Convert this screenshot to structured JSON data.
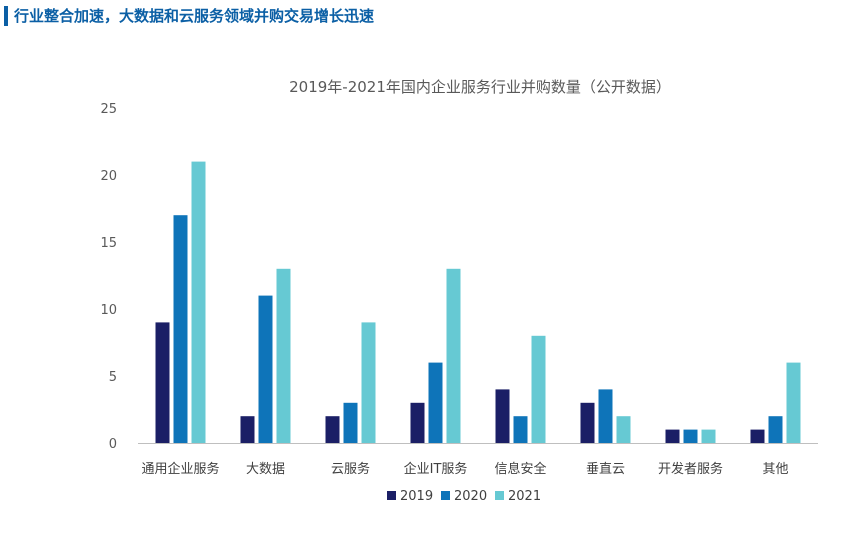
{
  "header": {
    "title": "行业整合加速，大数据和云服务领域并购交易增长迅速"
  },
  "colors": {
    "s2019": "#1b1f66",
    "s2020": "#0e74b9",
    "s2021": "#66c9d3",
    "accent": "#0b5fa5"
  },
  "chart_data": {
    "type": "bar",
    "title": "2019年-2021年国内企业服务行业并购数量（公开数据）",
    "categories": [
      "通用企业服务",
      "大数据",
      "云服务",
      "企业IT服务",
      "信息安全",
      "垂直云",
      "开发者服务",
      "其他"
    ],
    "series": [
      {
        "name": "2019",
        "values": [
          9,
          2,
          2,
          3,
          4,
          3,
          1,
          1
        ]
      },
      {
        "name": "2020",
        "values": [
          17,
          11,
          3,
          6,
          2,
          4,
          1,
          2
        ]
      },
      {
        "name": "2021",
        "values": [
          21,
          13,
          9,
          13,
          8,
          2,
          1,
          6
        ]
      }
    ],
    "yticks": [
      "0",
      "5",
      "10",
      "15",
      "20",
      "25"
    ],
    "ylim": [
      0,
      25
    ],
    "grid": false,
    "legend": "bottom"
  }
}
